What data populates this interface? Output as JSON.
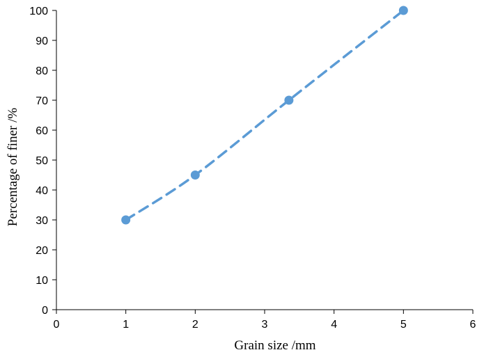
{
  "chart_data": {
    "type": "scatter",
    "title": "",
    "xlabel": "Grain size /mm",
    "ylabel": "Percentage of finer /%",
    "xlim": [
      0,
      6
    ],
    "ylim": [
      0,
      100
    ],
    "xticks": [
      0,
      1,
      2,
      3,
      4,
      5,
      6
    ],
    "yticks": [
      0,
      10,
      20,
      30,
      40,
      50,
      60,
      70,
      80,
      90,
      100
    ],
    "grid": false,
    "legend": "none",
    "series": [
      {
        "x": [
          1,
          2,
          3.35,
          5
        ],
        "y": [
          30,
          45,
          70,
          100
        ],
        "marker": "circle",
        "line": "dashed-smooth",
        "color": "#5B9BD5"
      }
    ]
  }
}
